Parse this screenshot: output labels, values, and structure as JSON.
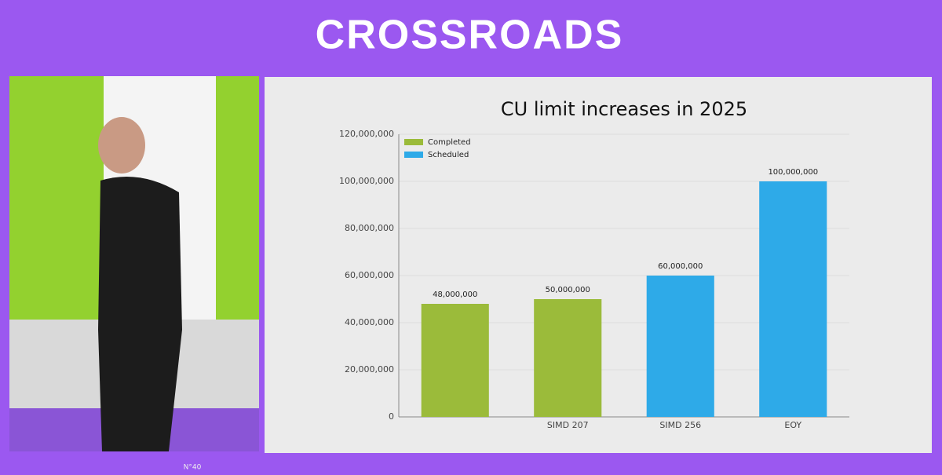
{
  "banner": "CROSSROADS",
  "footer_badge": "N°40",
  "chart_data": {
    "type": "bar",
    "title": "CU limit increases in 2025",
    "categories": [
      null,
      "SIMD 207",
      "SIMD 256",
      "EOY"
    ],
    "series": [
      {
        "name": "Completed",
        "color": "#9bbb3a",
        "values": [
          48000000,
          50000000,
          null,
          null
        ],
        "value_labels": [
          "48,000,000",
          "50,000,000",
          null,
          null
        ]
      },
      {
        "name": "Scheduled",
        "color": "#2eaae8",
        "values": [
          null,
          null,
          60000000,
          100000000
        ],
        "value_labels": [
          null,
          null,
          "60,000,000",
          "100,000,000"
        ]
      }
    ],
    "ylim": [
      0,
      120000000
    ],
    "yticks": [
      0,
      {
        "value": 20000000,
        "label": "20,000,000"
      },
      {
        "value": 40000000,
        "label": "40,000,000"
      },
      {
        "value": 60000000,
        "label": "60,000,000"
      },
      {
        "value": 80000000,
        "label": "80,000,000"
      },
      {
        "value": 100000000,
        "label": "100,000,000"
      },
      {
        "value": 120000000,
        "label": "120,000,000"
      }
    ],
    "grid": true,
    "legend": "top-left"
  }
}
